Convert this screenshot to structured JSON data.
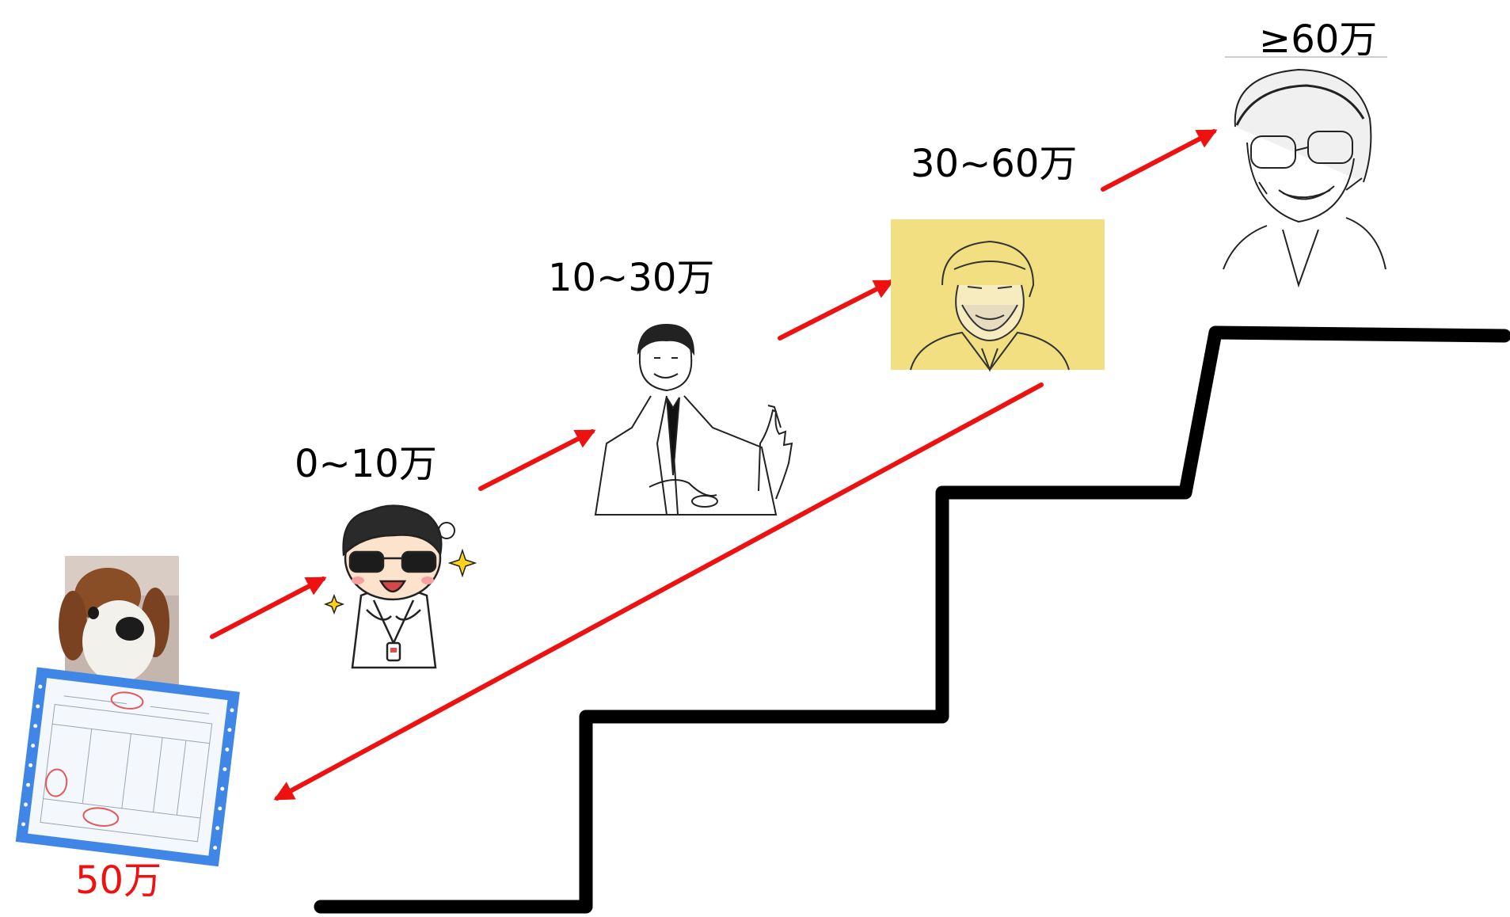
{
  "labels": {
    "tier1": "0~10万",
    "tier2": "10~30万",
    "tier3": "30~60万",
    "tier4": "≥60万",
    "start": "50万"
  },
  "icons": {
    "start_photo": "plush-dog-photo",
    "start_document": "invoice-document",
    "tier1": "cartoon-sunglasses-man",
    "tier2": "sketch-businessman-pointing",
    "tier3": "sketch-bearded-man-portrait",
    "tier4": "sketch-glasses-man-portrait"
  },
  "colors": {
    "arrow": "#ee1111",
    "stairs": "#000000",
    "start_label": "#ee1111",
    "tier3_background": "#f2df82",
    "document_frame": "#3f86e6"
  }
}
